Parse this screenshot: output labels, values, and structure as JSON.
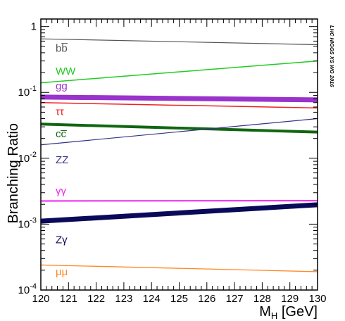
{
  "chart_data": {
    "type": "line",
    "ylabel": "Branching Ratio",
    "xlabel": "M",
    "xlabel_sub": "H",
    "xlabel_unit": " [GeV]",
    "watermark": "LHC HIGGS XS WG 2016",
    "y_scale": "log",
    "xlim": [
      120,
      130
    ],
    "ylim": [
      0.0001,
      1.3
    ],
    "grid": false,
    "x_ticks": [
      120,
      121,
      122,
      123,
      124,
      125,
      126,
      127,
      128,
      129,
      130
    ],
    "x_tick_labels": [
      "120",
      "121",
      "122",
      "123",
      "124",
      "125",
      "126",
      "127",
      "128",
      "129",
      "130"
    ],
    "y_ticks": [
      {
        "value": 1,
        "base": "1",
        "exp": ""
      },
      {
        "value": 0.1,
        "base": "10",
        "exp": "-1"
      },
      {
        "value": 0.01,
        "base": "10",
        "exp": "-2"
      },
      {
        "value": 0.001,
        "base": "10",
        "exp": "-3"
      },
      {
        "value": 0.0001,
        "base": "10",
        "exp": "-4"
      }
    ],
    "series": [
      {
        "name": "bb̅",
        "color": "#555555",
        "width": 1.2,
        "x": [
          120,
          130
        ],
        "y": [
          0.65,
          0.53
        ],
        "label_value": 0.47
      },
      {
        "name": "WW",
        "color": "#22cc22",
        "width": 1.5,
        "x": [
          120,
          130
        ],
        "y": [
          0.14,
          0.3
        ],
        "label_value": 0.21
      },
      {
        "name": "gg",
        "color": "#9933cc",
        "width": 7,
        "x": [
          120,
          130
        ],
        "y": [
          0.085,
          0.077
        ],
        "label_value": 0.125
      },
      {
        "name": "ττ",
        "color": "#ee2222",
        "width": 1.5,
        "x": [
          120,
          130
        ],
        "y": [
          0.07,
          0.058
        ],
        "label_value": 0.051
      },
      {
        "name": "cc̅",
        "color": "#116611",
        "width": 4,
        "x": [
          120,
          130
        ],
        "y": [
          0.033,
          0.025
        ],
        "label_value": 0.0235
      },
      {
        "name": "ZZ",
        "color": "#333388",
        "width": 1.2,
        "x": [
          120,
          130
        ],
        "y": [
          0.016,
          0.04
        ],
        "label_value": 0.0095
      },
      {
        "name": "γγ",
        "color": "#ee22ee",
        "width": 2,
        "x": [
          120,
          130
        ],
        "y": [
          0.00225,
          0.00227
        ],
        "label_value": 0.0032
      },
      {
        "name": "Zγ",
        "color": "#0a0a5a",
        "width": 7,
        "x": [
          120,
          130
        ],
        "y": [
          0.00111,
          0.00197
        ],
        "label_value": 0.00058
      },
      {
        "name": "μμ",
        "color": "#ff8822",
        "width": 1.3,
        "x": [
          120,
          130
        ],
        "y": [
          0.00024,
          0.00019
        ],
        "label_value": 0.00019
      }
    ]
  }
}
